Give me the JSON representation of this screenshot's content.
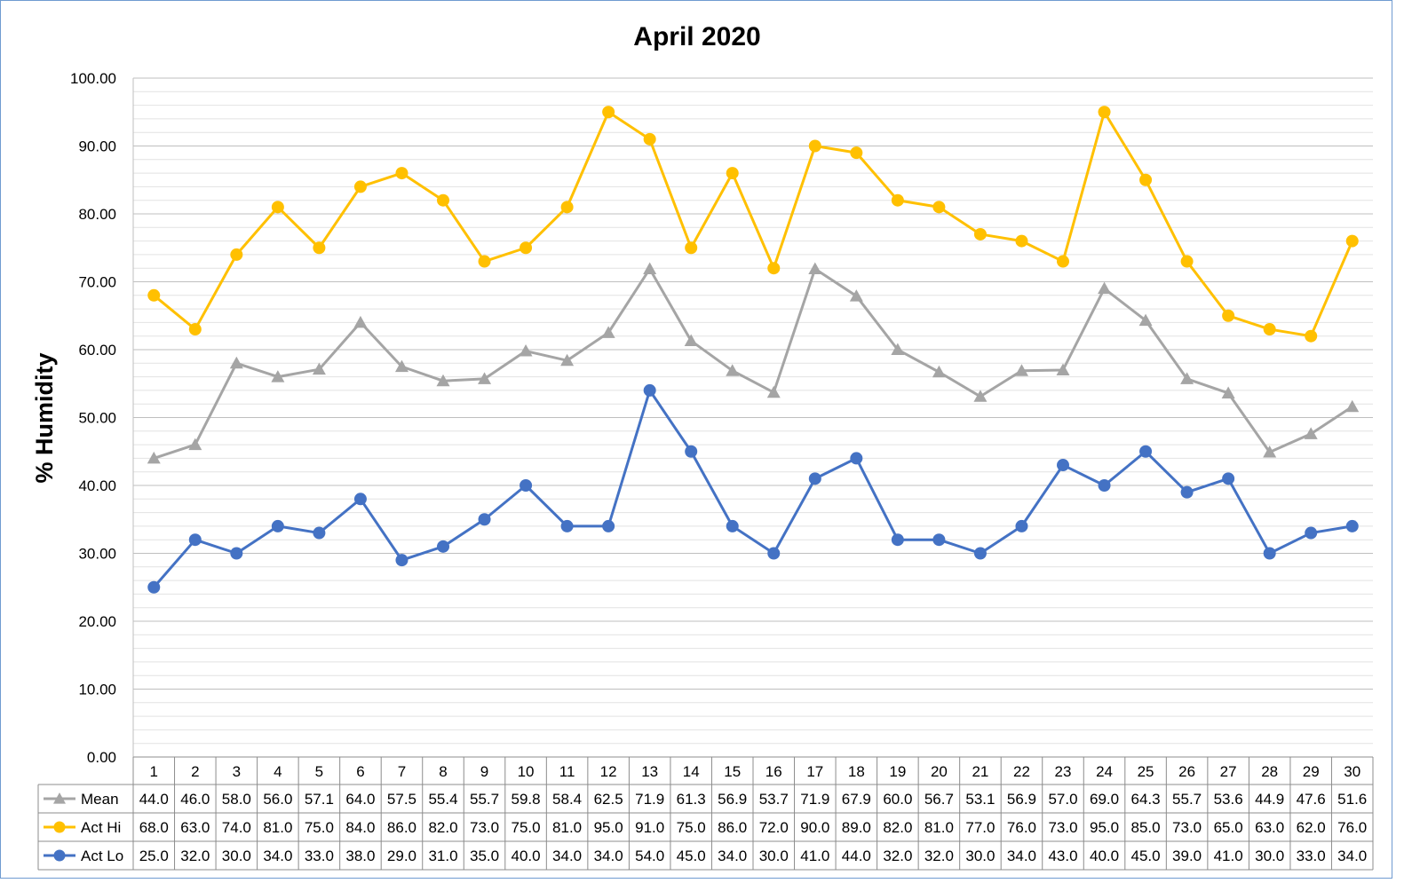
{
  "chart_data": {
    "type": "line",
    "title": "April 2020",
    "ylabel": "% Humidity",
    "xlabel": "",
    "ylim": [
      0,
      100
    ],
    "y_ticks": [
      "0.00",
      "10.00",
      "20.00",
      "30.00",
      "40.00",
      "50.00",
      "60.00",
      "70.00",
      "80.00",
      "90.00",
      "100.00"
    ],
    "y_tick_values": [
      0,
      10,
      20,
      30,
      40,
      50,
      60,
      70,
      80,
      90,
      100
    ],
    "minor_gridlines": true,
    "legend_placement": "data-table-below",
    "categories": [
      "1",
      "2",
      "3",
      "4",
      "5",
      "6",
      "7",
      "8",
      "9",
      "10",
      "11",
      "12",
      "13",
      "14",
      "15",
      "16",
      "17",
      "18",
      "19",
      "20",
      "21",
      "22",
      "23",
      "24",
      "25",
      "26",
      "27",
      "28",
      "29",
      "30"
    ],
    "series": [
      {
        "name": "Mean",
        "color": "#a5a5a5",
        "marker": "triangle",
        "values": [
          44.0,
          46.0,
          58.0,
          56.0,
          57.1,
          64.0,
          57.5,
          55.4,
          55.7,
          59.8,
          58.4,
          62.5,
          71.9,
          61.3,
          56.9,
          53.7,
          71.9,
          67.9,
          60.0,
          56.7,
          53.1,
          56.9,
          57.0,
          69.0,
          64.3,
          55.7,
          53.6,
          44.9,
          47.6,
          51.6
        ],
        "labels": [
          "44.0",
          "46.0",
          "58.0",
          "56.0",
          "57.1",
          "64.0",
          "57.5",
          "55.4",
          "55.7",
          "59.8",
          "58.4",
          "62.5",
          "71.9",
          "61.3",
          "56.9",
          "53.7",
          "71.9",
          "67.9",
          "60.0",
          "56.7",
          "53.1",
          "56.9",
          "57.0",
          "69.0",
          "64.3",
          "55.7",
          "53.6",
          "44.9",
          "47.6",
          "51.6"
        ]
      },
      {
        "name": "Act Hi",
        "color": "#ffc000",
        "marker": "circle",
        "values": [
          68,
          63,
          74,
          81,
          75,
          84,
          86,
          82,
          73,
          75,
          81,
          95,
          91,
          75,
          86,
          72,
          90,
          89,
          82,
          81,
          77,
          76,
          73,
          95,
          85,
          73,
          65,
          63,
          62,
          76
        ],
        "labels": [
          "68.0",
          "63.0",
          "74.0",
          "81.0",
          "75.0",
          "84.0",
          "86.0",
          "82.0",
          "73.0",
          "75.0",
          "81.0",
          "95.0",
          "91.0",
          "75.0",
          "86.0",
          "72.0",
          "90.0",
          "89.0",
          "82.0",
          "81.0",
          "77.0",
          "76.0",
          "73.0",
          "95.0",
          "85.0",
          "73.0",
          "65.0",
          "63.0",
          "62.0",
          "76.0"
        ]
      },
      {
        "name": "Act Lo",
        "color": "#4472c4",
        "marker": "circle",
        "values": [
          25,
          32,
          30,
          34,
          33,
          38,
          29,
          31,
          35,
          40,
          34,
          34,
          54,
          45,
          34,
          30,
          41,
          44,
          32,
          32,
          30,
          34,
          43,
          40,
          45,
          39,
          41,
          30,
          33,
          34
        ],
        "labels": [
          "25.0",
          "32.0",
          "30.0",
          "34.0",
          "33.0",
          "38.0",
          "29.0",
          "31.0",
          "35.0",
          "40.0",
          "34.0",
          "34.0",
          "54.0",
          "45.0",
          "34.0",
          "30.0",
          "41.0",
          "44.0",
          "32.0",
          "32.0",
          "30.0",
          "34.0",
          "43.0",
          "40.0",
          "45.0",
          "39.0",
          "41.0",
          "30.0",
          "33.0",
          "34.0"
        ]
      }
    ]
  }
}
